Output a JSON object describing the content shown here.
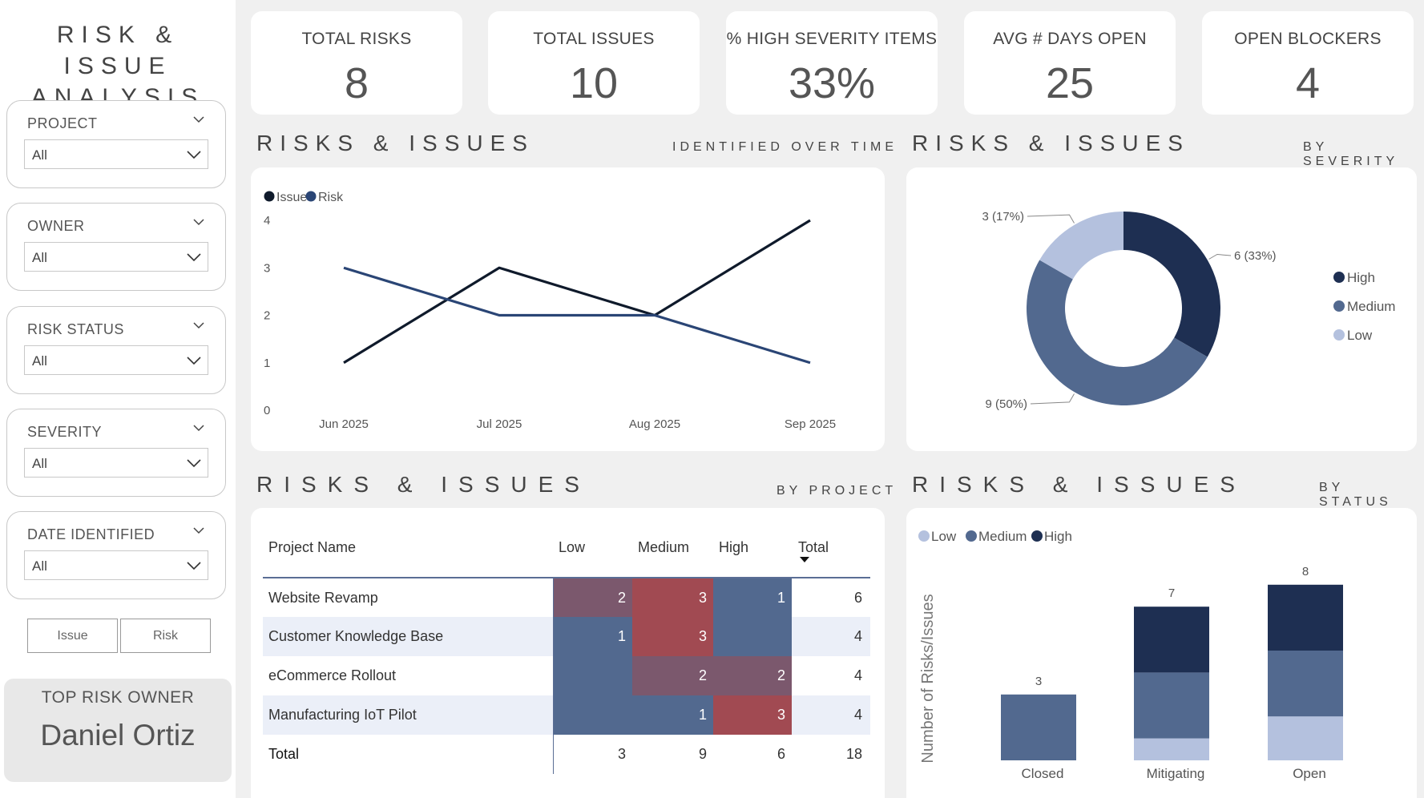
{
  "app": {
    "title_line1": "RISK & ISSUE",
    "title_line2": "ANALYSIS"
  },
  "filters": [
    {
      "label": "PROJECT",
      "value": "All"
    },
    {
      "label": "OWNER",
      "value": "All"
    },
    {
      "label": "RISK STATUS",
      "value": "All"
    },
    {
      "label": "SEVERITY",
      "value": "All"
    },
    {
      "label": "DATE IDENTIFIED",
      "value": "All"
    }
  ],
  "type_toggle": {
    "issue_label": "Issue",
    "risk_label": "Risk"
  },
  "top_owner": {
    "label": "TOP RISK OWNER",
    "name": "Daniel Ortiz"
  },
  "kpis": [
    {
      "label": "TOTAL RISKS",
      "value": "8"
    },
    {
      "label": "TOTAL ISSUES",
      "value": "10"
    },
    {
      "label": "% HIGH SEVERITY ITEMS",
      "value": "33%"
    },
    {
      "label": "AVG # DAYS OPEN",
      "value": "25"
    },
    {
      "label": "OPEN BLOCKERS",
      "value": "4"
    }
  ],
  "sections": {
    "time": {
      "title": "RISKS & ISSUES",
      "subtitle": "IDENTIFIED OVER TIME"
    },
    "severity": {
      "title": "RISKS & ISSUES",
      "subtitle": "BY SEVERITY"
    },
    "project": {
      "title": "RISKS & ISSUES",
      "subtitle": "BY PROJECT"
    },
    "status": {
      "title": "RISKS & ISSUES",
      "subtitle": "BY STATUS"
    }
  },
  "colors": {
    "high": "#1e2f52",
    "medium": "#52698f",
    "low": "#b4c1de",
    "issue": "#0f1a2b",
    "risk": "#2a4575",
    "heat_red": "#a14a52",
    "heat_mid": "#7b586d",
    "heat_blue": "#52698f"
  },
  "chart_data": [
    {
      "type": "line",
      "categories": [
        "Jun 2025",
        "Jul 2025",
        "Aug 2025",
        "Sep 2025"
      ],
      "series": [
        {
          "name": "Issue",
          "values": [
            1,
            3,
            2,
            4
          ]
        },
        {
          "name": "Risk",
          "values": [
            3,
            2,
            2,
            1
          ]
        }
      ],
      "yticks": [
        "0",
        "1",
        "2",
        "3",
        "4"
      ],
      "ylim": [
        0,
        4
      ]
    },
    {
      "type": "pie",
      "donut": true,
      "slices": [
        {
          "name": "High",
          "value": 6,
          "label": "6 (33%)"
        },
        {
          "name": "Medium",
          "value": 9,
          "label": "9 (50%)"
        },
        {
          "name": "Low",
          "value": 3,
          "label": "3 (17%)"
        }
      ]
    },
    {
      "type": "table",
      "columns": [
        "Project Name",
        "Low",
        "Medium",
        "High",
        "Total"
      ],
      "rows": [
        {
          "name": "Website Revamp",
          "low": "2",
          "medium": "3",
          "high": "1",
          "total": "6"
        },
        {
          "name": "Customer Knowledge Base",
          "low": "1",
          "medium": "3",
          "high": "",
          "total": "4"
        },
        {
          "name": "eCommerce Rollout",
          "low": "",
          "medium": "2",
          "high": "2",
          "total": "4"
        },
        {
          "name": "Manufacturing IoT Pilot",
          "low": "",
          "medium": "1",
          "high": "3",
          "total": "4"
        }
      ],
      "totals": {
        "name": "Total",
        "low": "3",
        "medium": "9",
        "high": "6",
        "total": "18"
      }
    },
    {
      "type": "bar",
      "stacked": true,
      "categories": [
        "Closed",
        "Mitigating",
        "Open"
      ],
      "series": [
        {
          "name": "Low",
          "values": [
            0,
            1,
            2
          ]
        },
        {
          "name": "Medium",
          "values": [
            3,
            3,
            3
          ]
        },
        {
          "name": "High",
          "values": [
            0,
            3,
            3
          ]
        }
      ],
      "totals": [
        "3",
        "7",
        "8"
      ],
      "ylabel": "Number of Risks/Issues",
      "ylim": [
        0,
        8
      ]
    }
  ]
}
